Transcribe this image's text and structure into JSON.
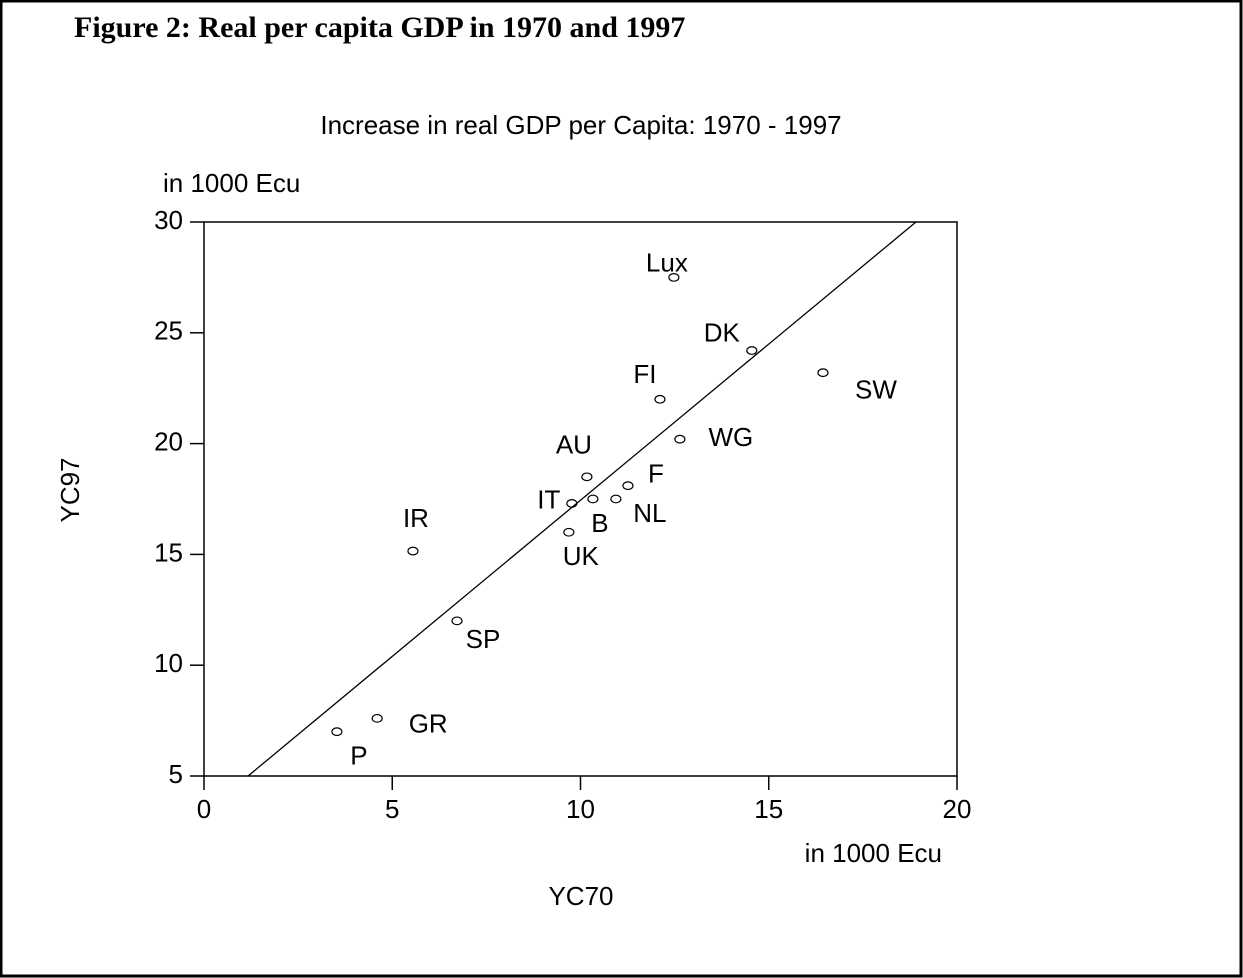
{
  "figure_title": "Figure 2: Real per capita GDP in 1970 and 1997",
  "chart_data": {
    "type": "scatter",
    "title": "Increase in real GDP per Capita: 1970 - 1997",
    "x_label": "YC70",
    "y_label": "YC97",
    "x_unit": "in 1000 Ecu",
    "y_unit": "in 1000 Ecu",
    "labels": [
      "Lux",
      "DK",
      "SW",
      "FI",
      "WG",
      "AU",
      "F",
      "NL",
      "B",
      "IT",
      "UK",
      "IR",
      "SP",
      "GR",
      "P"
    ],
    "x": [
      12.48,
      14.55,
      16.44,
      12.11,
      12.64,
      10.17,
      11.26,
      10.94,
      10.33,
      9.77,
      9.69,
      5.55,
      6.72,
      4.6,
      3.53
    ],
    "y": [
      27.5,
      24.2,
      23.2,
      22.0,
      20.2,
      18.5,
      18.1,
      17.5,
      17.5,
      17.3,
      16.0,
      15.15,
      12.0,
      7.6,
      7.0
    ],
    "fit_line": {
      "x": [
        1.17,
        18.91
      ],
      "y": [
        5,
        30
      ]
    },
    "xlim": [
      0,
      20
    ],
    "xticks": [
      0,
      5,
      10,
      15,
      20
    ],
    "ylim": [
      5,
      30
    ],
    "yticks": [
      5,
      10,
      15,
      20,
      25,
      30
    ],
    "color": "#000000"
  }
}
